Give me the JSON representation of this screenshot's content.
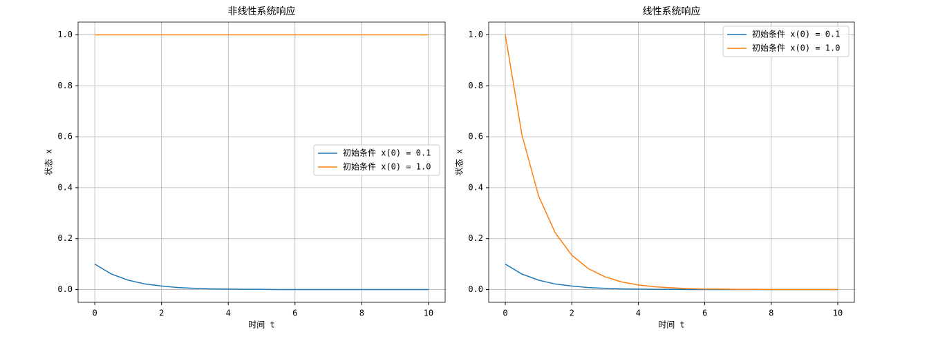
{
  "chart_data": [
    {
      "type": "line",
      "title": "非线性系统响应",
      "xlabel": "时间 t",
      "ylabel": "状态 x",
      "x": [
        0,
        0.5,
        1,
        1.5,
        2,
        2.5,
        3,
        3.5,
        4,
        4.5,
        5,
        5.5,
        6,
        6.5,
        7,
        7.5,
        8,
        8.5,
        9,
        9.5,
        10
      ],
      "series": [
        {
          "name": "初始条件 x(0) = 0.1",
          "color": "#1f77b4",
          "values": [
            0.1,
            0.061,
            0.037,
            0.022,
            0.014,
            0.008,
            0.005,
            0.003,
            0.002,
            0.001,
            0.001,
            0,
            0,
            0,
            0,
            0,
            0,
            0,
            0,
            0,
            0
          ]
        },
        {
          "name": "初始条件 x(0) = 1.0",
          "color": "#ff7f0e",
          "values": [
            1,
            1,
            1,
            1,
            1,
            1,
            1,
            1,
            1,
            1,
            1,
            1,
            1,
            1,
            1,
            1,
            1,
            1,
            1,
            1,
            1
          ]
        }
      ],
      "xlim": [
        -0.5,
        10.5
      ],
      "ylim": [
        -0.05,
        1.05
      ],
      "xticks": [
        0,
        2,
        4,
        6,
        8,
        10
      ],
      "yticks": [
        {
          "value": 0,
          "label": "0.0"
        },
        {
          "value": 0.2,
          "label": "0.2"
        },
        {
          "value": 0.4,
          "label": "0.4"
        },
        {
          "value": 0.6,
          "label": "0.6"
        },
        {
          "value": 0.8,
          "label": "0.8"
        },
        {
          "value": 1,
          "label": "1.0"
        }
      ],
      "grid": true,
      "legend": "center-right"
    },
    {
      "type": "line",
      "title": "线性系统响应",
      "xlabel": "时间 t",
      "ylabel": "状态 x",
      "x": [
        0,
        0.5,
        1,
        1.5,
        2,
        2.5,
        3,
        3.5,
        4,
        4.5,
        5,
        5.5,
        6,
        6.5,
        7,
        7.5,
        8,
        8.5,
        9,
        9.5,
        10
      ],
      "series": [
        {
          "name": "初始条件 x(0) = 0.1",
          "color": "#1f77b4",
          "values": [
            0.1,
            0.061,
            0.037,
            0.022,
            0.014,
            0.008,
            0.005,
            0.003,
            0.002,
            0.001,
            0.001,
            0,
            0,
            0,
            0,
            0,
            0,
            0,
            0,
            0,
            0
          ]
        },
        {
          "name": "初始条件 x(0) = 1.0",
          "color": "#ff7f0e",
          "values": [
            1,
            0.607,
            0.368,
            0.223,
            0.135,
            0.082,
            0.05,
            0.03,
            0.018,
            0.011,
            0.007,
            0.004,
            0.002,
            0.002,
            0.001,
            0.001,
            0,
            0,
            0,
            0,
            0
          ]
        }
      ],
      "xlim": [
        -0.5,
        10.5
      ],
      "ylim": [
        -0.05,
        1.05
      ],
      "xticks": [
        0,
        2,
        4,
        6,
        8,
        10
      ],
      "yticks": [
        {
          "value": 0,
          "label": "0.0"
        },
        {
          "value": 0.2,
          "label": "0.2"
        },
        {
          "value": 0.4,
          "label": "0.4"
        },
        {
          "value": 0.6,
          "label": "0.6"
        },
        {
          "value": 0.8,
          "label": "0.8"
        },
        {
          "value": 1,
          "label": "1.0"
        }
      ],
      "grid": true,
      "legend": "upper-right"
    }
  ]
}
